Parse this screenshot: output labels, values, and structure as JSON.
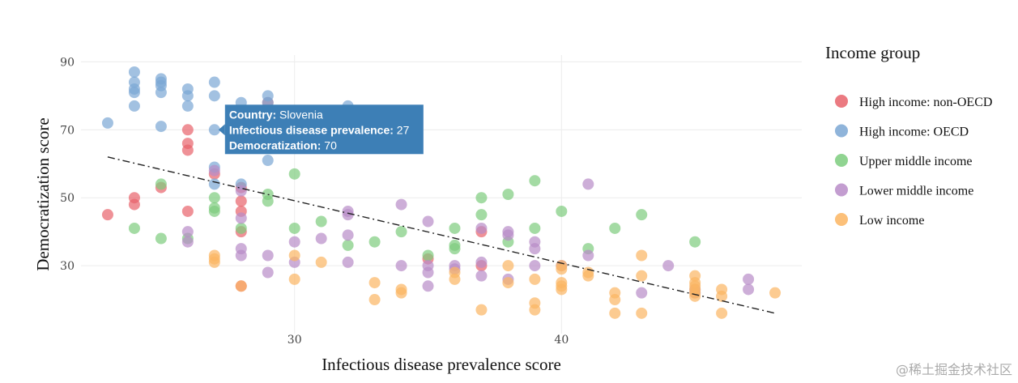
{
  "chart_data": {
    "type": "scatter",
    "xlabel": "Infectious disease prevalence score",
    "ylabel": "Democratization score",
    "xlim": [
      22,
      49
    ],
    "ylim": [
      10,
      92
    ],
    "xticks": [
      30,
      40
    ],
    "yticks": [
      30,
      50,
      70,
      90
    ],
    "grid": true,
    "legend_title": "Income group",
    "legend_position": "right",
    "series": [
      {
        "name": "High income: non-OECD",
        "color": "#e8636b",
        "points": [
          [
            23,
            45
          ],
          [
            24,
            48
          ],
          [
            24,
            50
          ],
          [
            25,
            53
          ],
          [
            26,
            46
          ],
          [
            26,
            64
          ],
          [
            26,
            66
          ],
          [
            26,
            70
          ],
          [
            28,
            24
          ],
          [
            28,
            40
          ],
          [
            28,
            46
          ],
          [
            28,
            49
          ],
          [
            28,
            53
          ],
          [
            27,
            57
          ],
          [
            29,
            78
          ],
          [
            35,
            32
          ],
          [
            37,
            40
          ],
          [
            37,
            30
          ]
        ]
      },
      {
        "name": "High income: OECD",
        "color": "#7ba7d4",
        "points": [
          [
            23,
            72
          ],
          [
            24,
            77
          ],
          [
            24,
            81
          ],
          [
            24,
            82
          ],
          [
            24,
            84
          ],
          [
            24,
            87
          ],
          [
            25,
            71
          ],
          [
            25,
            81
          ],
          [
            25,
            83
          ],
          [
            25,
            84
          ],
          [
            25,
            85
          ],
          [
            26,
            77
          ],
          [
            26,
            80
          ],
          [
            26,
            82
          ],
          [
            27,
            80
          ],
          [
            27,
            84
          ],
          [
            27,
            70
          ],
          [
            27,
            59
          ],
          [
            27,
            54
          ],
          [
            28,
            78
          ],
          [
            28,
            54
          ],
          [
            29,
            61
          ],
          [
            29,
            78
          ],
          [
            29,
            80
          ],
          [
            32,
            77
          ]
        ]
      },
      {
        "name": "Upper middle income",
        "color": "#7dcc7e",
        "points": [
          [
            24,
            41
          ],
          [
            25,
            38
          ],
          [
            25,
            54
          ],
          [
            26,
            38
          ],
          [
            27,
            46
          ],
          [
            27,
            47
          ],
          [
            27,
            50
          ],
          [
            28,
            41
          ],
          [
            29,
            49
          ],
          [
            29,
            51
          ],
          [
            30,
            41
          ],
          [
            30,
            57
          ],
          [
            31,
            43
          ],
          [
            32,
            36
          ],
          [
            33,
            37
          ],
          [
            34,
            40
          ],
          [
            35,
            33
          ],
          [
            36,
            35
          ],
          [
            36,
            36
          ],
          [
            36,
            41
          ],
          [
            37,
            45
          ],
          [
            37,
            50
          ],
          [
            38,
            37
          ],
          [
            38,
            51
          ],
          [
            39,
            41
          ],
          [
            39,
            55
          ],
          [
            40,
            46
          ],
          [
            41,
            35
          ],
          [
            42,
            41
          ],
          [
            43,
            45
          ],
          [
            45,
            37
          ]
        ]
      },
      {
        "name": "Lower middle income",
        "color": "#b88cc8",
        "points": [
          [
            26,
            37
          ],
          [
            26,
            40
          ],
          [
            27,
            58
          ],
          [
            28,
            35
          ],
          [
            28,
            33
          ],
          [
            28,
            44
          ],
          [
            28,
            52
          ],
          [
            29,
            28
          ],
          [
            29,
            33
          ],
          [
            30,
            31
          ],
          [
            30,
            37
          ],
          [
            31,
            38
          ],
          [
            32,
            31
          ],
          [
            32,
            39
          ],
          [
            32,
            45
          ],
          [
            32,
            46
          ],
          [
            34,
            30
          ],
          [
            34,
            48
          ],
          [
            35,
            24
          ],
          [
            35,
            28
          ],
          [
            35,
            30
          ],
          [
            35,
            43
          ],
          [
            36,
            29
          ],
          [
            36,
            30
          ],
          [
            37,
            27
          ],
          [
            37,
            31
          ],
          [
            37,
            41
          ],
          [
            38,
            26
          ],
          [
            38,
            39
          ],
          [
            38,
            40
          ],
          [
            39,
            30
          ],
          [
            39,
            35
          ],
          [
            39,
            37
          ],
          [
            40,
            30
          ],
          [
            41,
            33
          ],
          [
            41,
            54
          ],
          [
            43,
            22
          ],
          [
            44,
            30
          ],
          [
            45,
            22
          ],
          [
            45,
            23
          ],
          [
            47,
            23
          ],
          [
            47,
            26
          ]
        ]
      },
      {
        "name": "Low income",
        "color": "#fbb562",
        "points": [
          [
            27,
            31
          ],
          [
            27,
            32
          ],
          [
            27,
            33
          ],
          [
            28,
            24
          ],
          [
            30,
            26
          ],
          [
            30,
            33
          ],
          [
            31,
            31
          ],
          [
            33,
            20
          ],
          [
            33,
            25
          ],
          [
            34,
            22
          ],
          [
            34,
            23
          ],
          [
            36,
            26
          ],
          [
            36,
            28
          ],
          [
            37,
            17
          ],
          [
            38,
            25
          ],
          [
            38,
            30
          ],
          [
            39,
            17
          ],
          [
            39,
            19
          ],
          [
            39,
            26
          ],
          [
            40,
            23
          ],
          [
            40,
            24
          ],
          [
            40,
            25
          ],
          [
            40,
            29
          ],
          [
            40,
            30
          ],
          [
            41,
            27
          ],
          [
            41,
            28
          ],
          [
            42,
            16
          ],
          [
            42,
            20
          ],
          [
            42,
            22
          ],
          [
            43,
            16
          ],
          [
            43,
            27
          ],
          [
            43,
            33
          ],
          [
            45,
            21
          ],
          [
            45,
            22
          ],
          [
            45,
            23
          ],
          [
            45,
            24
          ],
          [
            45,
            25
          ],
          [
            45,
            27
          ],
          [
            46,
            16
          ],
          [
            46,
            21
          ],
          [
            46,
            23
          ],
          [
            48,
            22
          ]
        ]
      }
    ],
    "trendline": {
      "style": "dash-dot",
      "color": "#222222",
      "x": [
        23,
        48
      ],
      "y": [
        62,
        16
      ]
    },
    "tooltip": {
      "anchor_point": [
        27,
        70
      ],
      "color": "#3d7fb6",
      "lines": [
        {
          "label": "Country:",
          "value": "Slovenia"
        },
        {
          "label": "Infectious disease prevalence:",
          "value": "27"
        },
        {
          "label": "Democratization:",
          "value": "70"
        }
      ]
    }
  },
  "watermark": "@稀土掘金技术社区"
}
